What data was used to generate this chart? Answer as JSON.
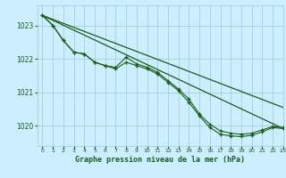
{
  "background_color": "#cceeff",
  "grid_color": "#99cccc",
  "line_color": "#1a5c1a",
  "title": "Graphe pression niveau de la mer (hPa)",
  "title_color": "#1a5c1a",
  "xlim": [
    -0.5,
    23
  ],
  "ylim": [
    1019.4,
    1023.6
  ],
  "yticks": [
    1020,
    1021,
    1022,
    1023
  ],
  "xticks": [
    0,
    1,
    2,
    3,
    4,
    5,
    6,
    7,
    8,
    9,
    10,
    11,
    12,
    13,
    14,
    15,
    16,
    17,
    18,
    19,
    20,
    21,
    22,
    23
  ],
  "series_wavy": {
    "x": [
      0,
      1,
      2,
      3,
      4,
      5,
      6,
      7,
      8,
      9,
      10,
      11,
      12,
      13,
      14,
      15,
      16,
      17,
      18,
      19,
      20,
      21,
      22,
      23
    ],
    "y": [
      1023.3,
      1023.0,
      1022.55,
      1022.2,
      1022.15,
      1021.9,
      1021.8,
      1021.75,
      1022.05,
      1021.85,
      1021.75,
      1021.6,
      1021.35,
      1021.1,
      1020.8,
      1020.35,
      1020.05,
      1019.85,
      1019.78,
      1019.75,
      1019.78,
      1019.88,
      1019.98,
      1019.95
    ]
  },
  "series_wavy2": {
    "x": [
      0,
      1,
      2,
      3,
      4,
      5,
      6,
      7,
      8,
      9,
      10,
      11,
      12,
      13,
      14,
      15,
      16,
      17,
      18,
      19,
      20,
      21,
      22,
      23
    ],
    "y": [
      1023.3,
      1023.0,
      1022.55,
      1022.2,
      1022.15,
      1021.9,
      1021.8,
      1021.7,
      1021.9,
      1021.8,
      1021.7,
      1021.55,
      1021.3,
      1021.05,
      1020.7,
      1020.3,
      1019.95,
      1019.75,
      1019.7,
      1019.68,
      1019.72,
      1019.82,
      1019.95,
      1019.92
    ]
  },
  "line_straight1": {
    "x": [
      0,
      23
    ],
    "y": [
      1023.3,
      1020.55
    ]
  },
  "line_straight2": {
    "x": [
      0,
      23
    ],
    "y": [
      1023.3,
      1019.92
    ]
  }
}
